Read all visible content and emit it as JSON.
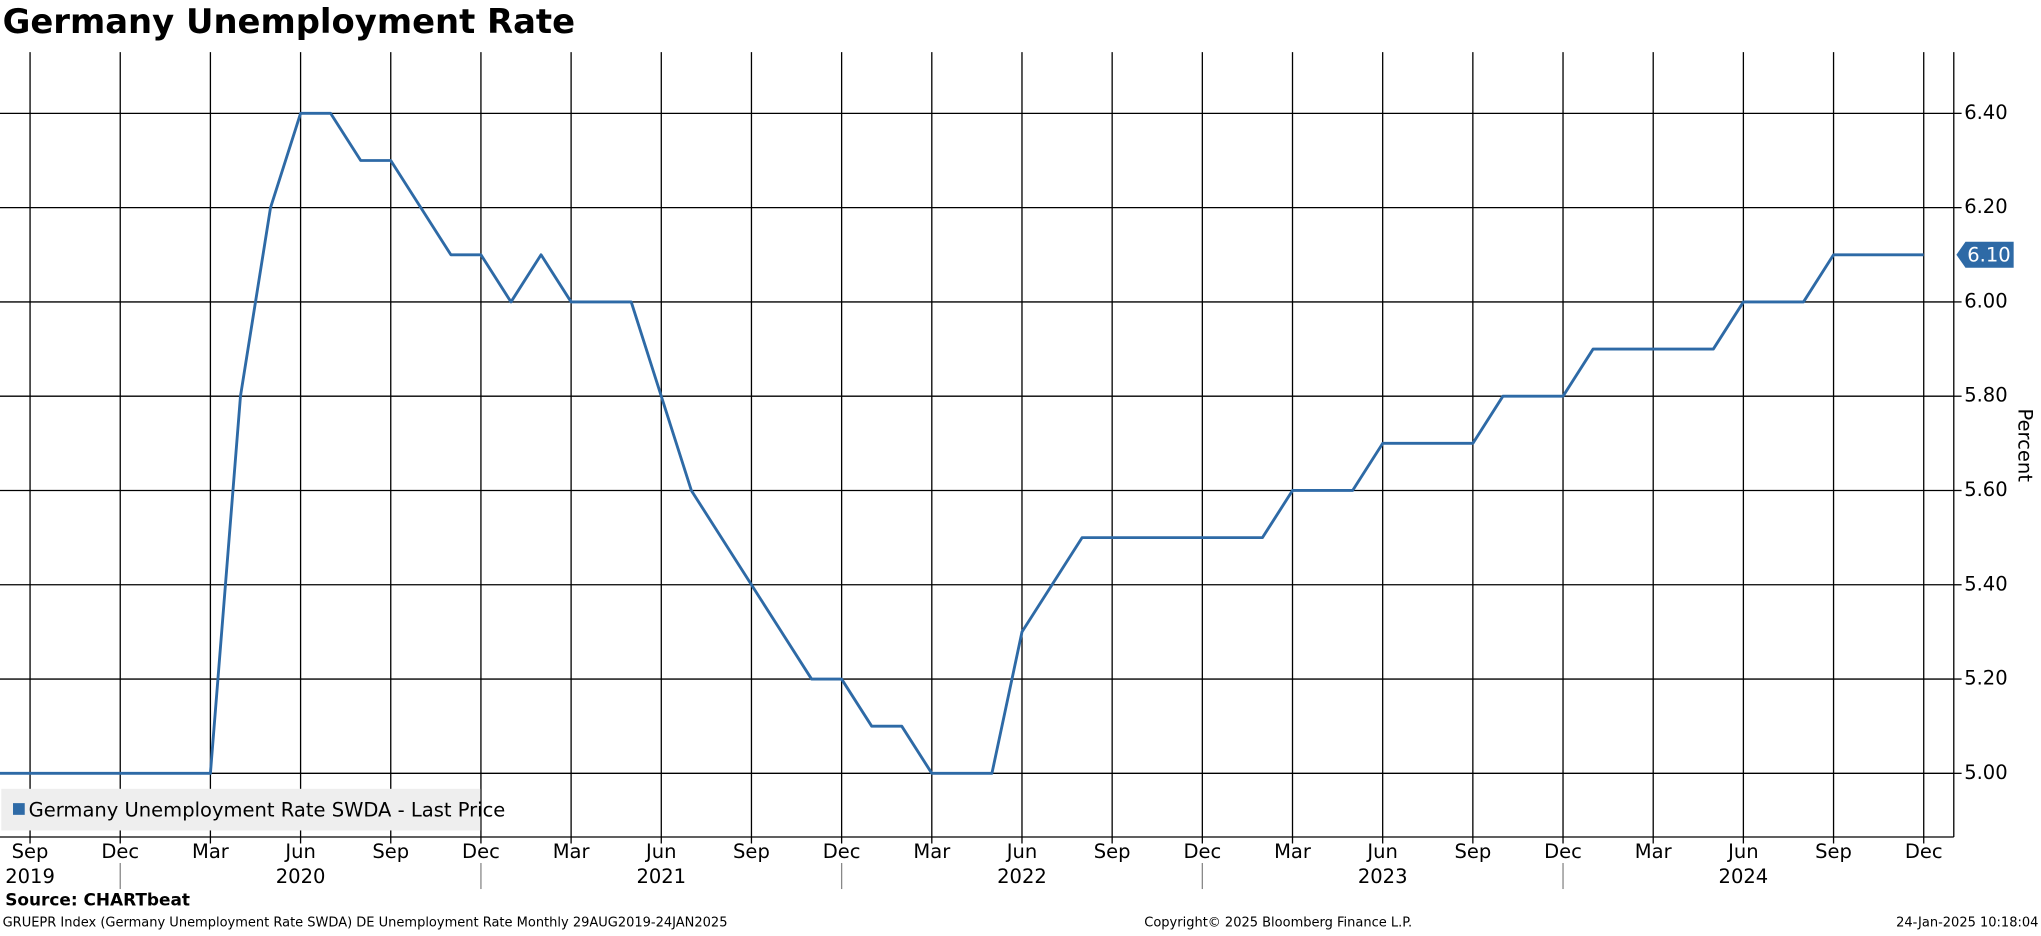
{
  "chart_data": {
    "type": "line",
    "title": "Germany Unemployment Rate",
    "y_label": "Percent",
    "source": "Source: CHARTbeat",
    "footer_left": "GRUEPR Index (Germany Unemployment Rate SWDA) DE Unemployment Rate  Monthly 29AUG2019-24JAN2025",
    "footer_center": "Copyright© 2025 Bloomberg Finance L.P.",
    "footer_right": "24-Jan-2025 10:18:04",
    "x": [
      "2019-08",
      "2019-09",
      "2019-10",
      "2019-11",
      "2019-12",
      "2020-01",
      "2020-02",
      "2020-03",
      "2020-04",
      "2020-05",
      "2020-06",
      "2020-07",
      "2020-08",
      "2020-09",
      "2020-10",
      "2020-11",
      "2020-12",
      "2021-01",
      "2021-02",
      "2021-03",
      "2021-04",
      "2021-05",
      "2021-06",
      "2021-07",
      "2021-08",
      "2021-09",
      "2021-10",
      "2021-11",
      "2021-12",
      "2022-01",
      "2022-02",
      "2022-03",
      "2022-04",
      "2022-05",
      "2022-06",
      "2022-07",
      "2022-08",
      "2022-09",
      "2022-10",
      "2022-11",
      "2022-12",
      "2023-01",
      "2023-02",
      "2023-03",
      "2023-04",
      "2023-05",
      "2023-06",
      "2023-07",
      "2023-08",
      "2023-09",
      "2023-10",
      "2023-11",
      "2023-12",
      "2024-01",
      "2024-02",
      "2024-03",
      "2024-04",
      "2024-05",
      "2024-06",
      "2024-07",
      "2024-08",
      "2024-09",
      "2024-10",
      "2024-11",
      "2024-12"
    ],
    "series": [
      {
        "name": "Germany Unemployment Rate SWDA - Last Price",
        "color": "#2e6aa6",
        "values": [
          5.0,
          5.0,
          5.0,
          5.0,
          5.0,
          5.0,
          5.0,
          5.0,
          5.8,
          6.2,
          6.4,
          6.4,
          6.3,
          6.3,
          6.2,
          6.1,
          6.1,
          6.0,
          6.1,
          6.0,
          6.0,
          6.0,
          5.8,
          5.6,
          5.5,
          5.4,
          5.3,
          5.2,
          5.2,
          5.1,
          5.1,
          5.0,
          5.0,
          5.0,
          5.3,
          5.4,
          5.5,
          5.5,
          5.5,
          5.5,
          5.5,
          5.5,
          5.5,
          5.6,
          5.6,
          5.6,
          5.7,
          5.7,
          5.7,
          5.7,
          5.8,
          5.8,
          5.8,
          5.9,
          5.9,
          5.9,
          5.9,
          5.9,
          6.0,
          6.0,
          6.0,
          6.1,
          6.1,
          6.1,
          6.1
        ]
      }
    ],
    "last_price": {
      "value": 6.1,
      "label": "6.10"
    },
    "xlim": [
      "2019-08",
      "2025-01"
    ],
    "xticks": [
      {
        "value": "2019-09",
        "label": "Sep"
      },
      {
        "value": "2019-12",
        "label": "Dec"
      },
      {
        "value": "2020-03",
        "label": "Mar"
      },
      {
        "value": "2020-06",
        "label": "Jun"
      },
      {
        "value": "2020-09",
        "label": "Sep"
      },
      {
        "value": "2020-12",
        "label": "Dec"
      },
      {
        "value": "2021-03",
        "label": "Mar"
      },
      {
        "value": "2021-06",
        "label": "Jun"
      },
      {
        "value": "2021-09",
        "label": "Sep"
      },
      {
        "value": "2021-12",
        "label": "Dec"
      },
      {
        "value": "2022-03",
        "label": "Mar"
      },
      {
        "value": "2022-06",
        "label": "Jun"
      },
      {
        "value": "2022-09",
        "label": "Sep"
      },
      {
        "value": "2022-12",
        "label": "Dec"
      },
      {
        "value": "2023-03",
        "label": "Mar"
      },
      {
        "value": "2023-06",
        "label": "Jun"
      },
      {
        "value": "2023-09",
        "label": "Sep"
      },
      {
        "value": "2023-12",
        "label": "Dec"
      },
      {
        "value": "2024-03",
        "label": "Mar"
      },
      {
        "value": "2024-06",
        "label": "Jun"
      },
      {
        "value": "2024-09",
        "label": "Sep"
      },
      {
        "value": "2024-12",
        "label": "Dec"
      }
    ],
    "year_labels": [
      {
        "value": "2019-09",
        "label": "2019"
      },
      {
        "value": "2020-06",
        "label": "2020"
      },
      {
        "value": "2021-06",
        "label": "2021"
      },
      {
        "value": "2022-06",
        "label": "2022"
      },
      {
        "value": "2023-06",
        "label": "2023"
      },
      {
        "value": "2024-06",
        "label": "2024"
      }
    ],
    "ylim": [
      4.865,
      6.53
    ],
    "yticks": [
      {
        "value": 5,
        "label": "5.00"
      },
      {
        "value": 5.2,
        "label": "5.20"
      },
      {
        "value": 5.4,
        "label": "5.40"
      },
      {
        "value": 5.6,
        "label": "5.60"
      },
      {
        "value": 5.8,
        "label": "5.80"
      },
      {
        "value": 6,
        "label": "6.00"
      },
      {
        "value": 6.2,
        "label": "6.20"
      },
      {
        "value": 6.4,
        "label": "6.40"
      }
    ],
    "grid": true,
    "legend": "lower left"
  }
}
